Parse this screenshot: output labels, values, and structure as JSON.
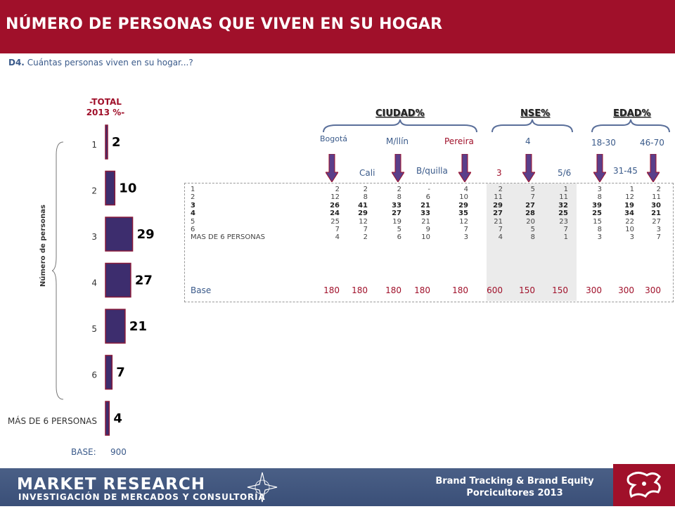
{
  "header": {
    "title": "NÚMERO DE PERSONAS QUE VIVEN EN SU HOGAR"
  },
  "question": {
    "code": "D4.",
    "text": "Cuántas personas viven en su hogar...?"
  },
  "total": {
    "label_line1": "-TOTAL",
    "label_line2": "2013 %-",
    "base_label": "BASE:",
    "base_value": "900",
    "axis_label": "Número de personas"
  },
  "chart_data": {
    "type": "bar",
    "orientation": "horizontal",
    "title": "-TOTAL 2013 %-",
    "ylabel": "Número de personas",
    "categories": [
      "1",
      "2",
      "3",
      "4",
      "5",
      "6",
      "MÁS DE 6 PERSONAS"
    ],
    "values": [
      2,
      10,
      29,
      27,
      21,
      7,
      4
    ],
    "xlim": [
      0,
      30
    ],
    "bar_color": "#3d2d6e"
  },
  "groups": [
    {
      "label": "CIUDAD%"
    },
    {
      "label": "NSE%"
    },
    {
      "label": "EDAD%"
    }
  ],
  "columns": [
    "Bogotá",
    "Cali",
    "M/llín",
    "B/quilla",
    "Pereira",
    "3",
    "4",
    "5/6",
    "18-30",
    "31-45",
    "46-70"
  ],
  "table": {
    "rows": [
      {
        "label": "1",
        "bold": false,
        "values": [
          "2",
          "2",
          "2",
          "-",
          "4",
          "2",
          "5",
          "1",
          "3",
          "1",
          "2"
        ]
      },
      {
        "label": "2",
        "bold": false,
        "values": [
          "12",
          "8",
          "8",
          "6",
          "10",
          "11",
          "7",
          "11",
          "8",
          "12",
          "11"
        ]
      },
      {
        "label": "3",
        "bold": true,
        "values": [
          "26",
          "41",
          "33",
          "21",
          "29",
          "29",
          "27",
          "32",
          "39",
          "19",
          "30"
        ]
      },
      {
        "label": "4",
        "bold": true,
        "values": [
          "24",
          "29",
          "27",
          "33",
          "35",
          "27",
          "28",
          "25",
          "25",
          "34",
          "21"
        ]
      },
      {
        "label": "5",
        "bold": false,
        "values": [
          "25",
          "12",
          "19",
          "21",
          "12",
          "21",
          "20",
          "23",
          "15",
          "22",
          "27"
        ]
      },
      {
        "label": "6",
        "bold": false,
        "values": [
          "7",
          "7",
          "5",
          "9",
          "7",
          "7",
          "5",
          "7",
          "8",
          "10",
          "3"
        ]
      },
      {
        "label": "MAS DE 6 PERSONAS",
        "bold": false,
        "values": [
          "4",
          "2",
          "6",
          "10",
          "3",
          "4",
          "8",
          "1",
          "3",
          "3",
          "7"
        ]
      }
    ],
    "base": {
      "label": "Base",
      "values": [
        "180",
        "180",
        "180",
        "180",
        "180",
        "600",
        "150",
        "150",
        "300",
        "300",
        "300"
      ]
    }
  },
  "footer": {
    "logo_main": "MARKET RESEARCH",
    "logo_sub": "INVESTIGACIÓN DE MERCADOS Y CONSULTORÍA",
    "brand_line1": "Brand Tracking & Brand Equity",
    "brand_line2": "Porcicultores 2013"
  },
  "colors": {
    "accent": "#a0102a",
    "bar": "#3d2d6e",
    "arrow": "#5a3f8a",
    "blue_text": "#3a5a8a",
    "footer": "#4a5f86"
  }
}
